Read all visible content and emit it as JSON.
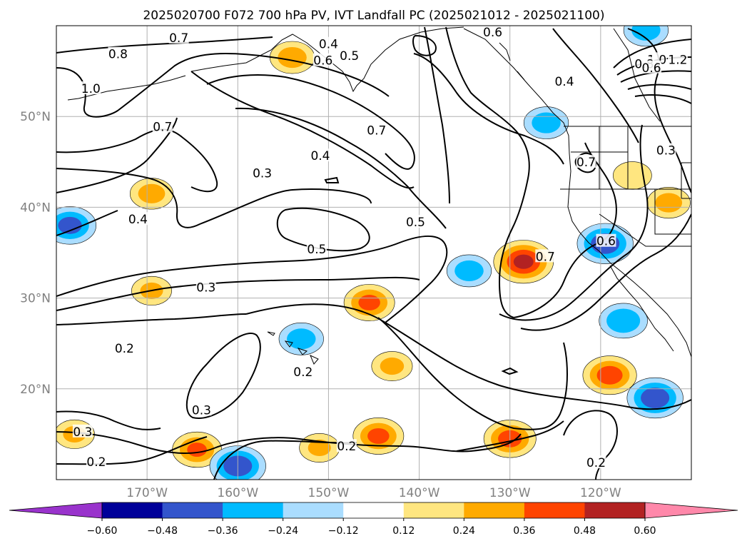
{
  "chart_data": {
    "type": "heatmap",
    "title": "2025020700 F072 700 hPa PV, IVT Landfall PC (2025021012 - 2025021100)",
    "projection": "PlateCarree",
    "lon_range": [
      -180,
      -110
    ],
    "lat_range": [
      10,
      60
    ],
    "grid": true,
    "x_ticks": [
      {
        "lon": -170,
        "label": "170°W"
      },
      {
        "lon": -160,
        "label": "160°W"
      },
      {
        "lon": -150,
        "label": "150°W"
      },
      {
        "lon": -140,
        "label": "140°W"
      },
      {
        "lon": -130,
        "label": "130°W"
      },
      {
        "lon": -120,
        "label": "120°W"
      }
    ],
    "y_ticks": [
      {
        "lat": 20,
        "label": "20°N"
      },
      {
        "lat": 30,
        "label": "30°N"
      },
      {
        "lat": 40,
        "label": "40°N"
      },
      {
        "lat": 50,
        "label": "50°N"
      }
    ],
    "colorbar": {
      "orientation": "horizontal",
      "extend": "both",
      "levels": [
        -0.72,
        -0.6,
        -0.48,
        -0.36,
        -0.24,
        -0.12,
        0.12,
        0.24,
        0.36,
        0.48,
        0.6,
        0.72
      ],
      "colors": [
        "#9933cc",
        "#000099",
        "#3355cc",
        "#00bbff",
        "#aaddff",
        "#ffffff",
        "#ffe680",
        "#ffaa00",
        "#ff4400",
        "#b22222",
        "#ff88aa"
      ],
      "tick_values": [
        -0.6,
        -0.48,
        -0.36,
        -0.24,
        -0.12,
        0.12,
        0.24,
        0.36,
        0.48,
        0.6
      ],
      "tick_labels": [
        "−0.60",
        "−0.48",
        "−0.36",
        "−0.24",
        "−0.12",
        "0.12",
        "0.24",
        "0.36",
        "0.48",
        "0.60"
      ]
    },
    "pc_anomalies": [
      {
        "lon": -178.5,
        "lat": 38.0,
        "peak": -0.4
      },
      {
        "lon": -169.5,
        "lat": 41.5,
        "peak": 0.28
      },
      {
        "lon": -169.5,
        "lat": 30.8,
        "peak": 0.24
      },
      {
        "lon": -164.5,
        "lat": 13.3,
        "peak": 0.36
      },
      {
        "lon": -160.0,
        "lat": 11.5,
        "peak": -0.45
      },
      {
        "lon": -178.0,
        "lat": 15.0,
        "peak": 0.24
      },
      {
        "lon": -153.0,
        "lat": 25.5,
        "peak": -0.3
      },
      {
        "lon": -145.5,
        "lat": 29.5,
        "peak": 0.38
      },
      {
        "lon": -144.5,
        "lat": 14.8,
        "peak": 0.38
      },
      {
        "lon": -143.0,
        "lat": 22.5,
        "peak": 0.25
      },
      {
        "lon": -151.0,
        "lat": 13.5,
        "peak": 0.24
      },
      {
        "lon": -134.5,
        "lat": 33.0,
        "peak": -0.3
      },
      {
        "lon": -128.5,
        "lat": 34.0,
        "peak": 0.5
      },
      {
        "lon": -130.0,
        "lat": 14.5,
        "peak": 0.4
      },
      {
        "lon": -119.5,
        "lat": 36.0,
        "peak": -0.45
      },
      {
        "lon": -117.5,
        "lat": 27.5,
        "peak": -0.35
      },
      {
        "lon": -119.0,
        "lat": 21.5,
        "peak": 0.42
      },
      {
        "lon": -114.0,
        "lat": 19.0,
        "peak": -0.45
      },
      {
        "lon": -126.0,
        "lat": 49.3,
        "peak": -0.3
      },
      {
        "lon": -112.5,
        "lat": 40.5,
        "peak": 0.28
      },
      {
        "lon": -154.0,
        "lat": 56.5,
        "peak": 0.3
      },
      {
        "lon": -115.0,
        "lat": 59.5,
        "peak": -0.3
      },
      {
        "lon": -116.5,
        "lat": 43.5,
        "peak": 0.22
      }
    ],
    "contour_labels": [
      {
        "lon": -176.2,
        "lat": 53.0,
        "label": "1.0"
      },
      {
        "lon": -173.2,
        "lat": 56.8,
        "label": "0.8"
      },
      {
        "lon": -166.5,
        "lat": 58.6,
        "label": "0.7"
      },
      {
        "lon": -168.3,
        "lat": 48.8,
        "label": "0.7"
      },
      {
        "lon": -150.0,
        "lat": 57.9,
        "label": "0.4"
      },
      {
        "lon": -150.6,
        "lat": 56.1,
        "label": "0.6"
      },
      {
        "lon": -147.7,
        "lat": 56.6,
        "label": "0.5"
      },
      {
        "lon": -131.9,
        "lat": 59.2,
        "label": "0.6"
      },
      {
        "lon": -124.0,
        "lat": 53.8,
        "label": "0.4"
      },
      {
        "lon": -144.7,
        "lat": 48.4,
        "label": "0.7"
      },
      {
        "lon": -150.9,
        "lat": 45.6,
        "label": "0.4"
      },
      {
        "lon": -157.3,
        "lat": 43.7,
        "label": "0.3"
      },
      {
        "lon": -140.4,
        "lat": 38.3,
        "label": "0.5"
      },
      {
        "lon": -151.3,
        "lat": 35.3,
        "label": "0.5"
      },
      {
        "lon": -171.0,
        "lat": 38.6,
        "label": "0.4"
      },
      {
        "lon": -163.5,
        "lat": 31.1,
        "label": "0.3"
      },
      {
        "lon": -126.1,
        "lat": 34.5,
        "label": "0.7"
      },
      {
        "lon": -119.4,
        "lat": 36.2,
        "label": "0.6"
      },
      {
        "lon": -113.8,
        "lat": 56.2,
        "label": "1.0"
      },
      {
        "lon": -111.5,
        "lat": 56.2,
        "label": "1.2"
      },
      {
        "lon": -115.2,
        "lat": 55.7,
        "label": "0.8"
      },
      {
        "lon": -114.4,
        "lat": 55.3,
        "label": "0.6"
      },
      {
        "lon": -121.6,
        "lat": 44.9,
        "label": "0.7"
      },
      {
        "lon": -112.8,
        "lat": 46.2,
        "label": "0.3"
      },
      {
        "lon": -172.5,
        "lat": 24.4,
        "label": "0.2"
      },
      {
        "lon": -152.8,
        "lat": 21.8,
        "label": "0.2"
      },
      {
        "lon": -164.0,
        "lat": 17.6,
        "label": "0.3"
      },
      {
        "lon": -177.1,
        "lat": 15.2,
        "label": "0.3"
      },
      {
        "lon": -175.6,
        "lat": 11.9,
        "label": "0.2"
      },
      {
        "lon": -148.0,
        "lat": 13.6,
        "label": "0.2"
      },
      {
        "lon": -120.5,
        "lat": 11.8,
        "label": "0.2"
      }
    ]
  }
}
